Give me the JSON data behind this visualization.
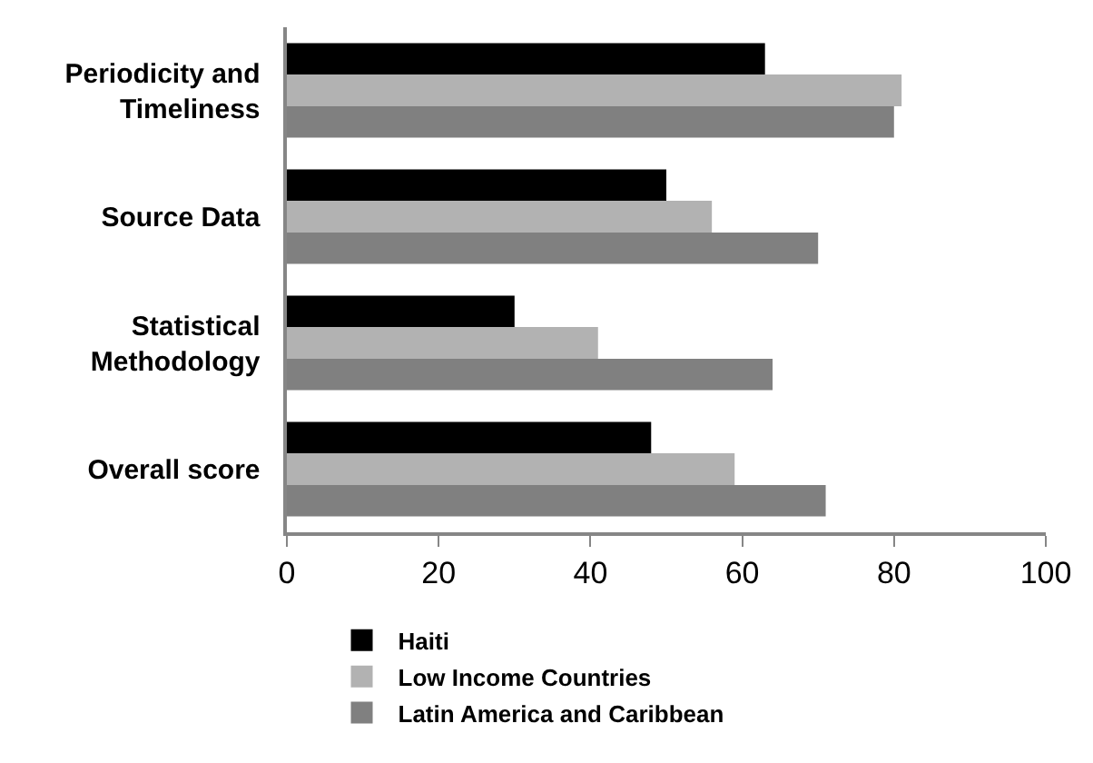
{
  "chart_data": {
    "type": "bar",
    "orientation": "horizontal",
    "categories": [
      "Periodicity and Timeliness",
      "Source Data",
      "Statistical Methodology",
      "Overall score"
    ],
    "series": [
      {
        "name": "Haiti",
        "color": "#000000",
        "values": [
          63,
          50,
          30,
          48
        ]
      },
      {
        "name": "Low Income Countries",
        "color": "#b2b2b2",
        "values": [
          81,
          56,
          41,
          59
        ]
      },
      {
        "name": "Latin America and Caribbean",
        "color": "#808080",
        "values": [
          80,
          70,
          64,
          71
        ]
      }
    ],
    "xlim": [
      0,
      100
    ],
    "xticks": [
      0,
      20,
      40,
      60,
      80,
      100
    ],
    "legend": "bottom"
  }
}
